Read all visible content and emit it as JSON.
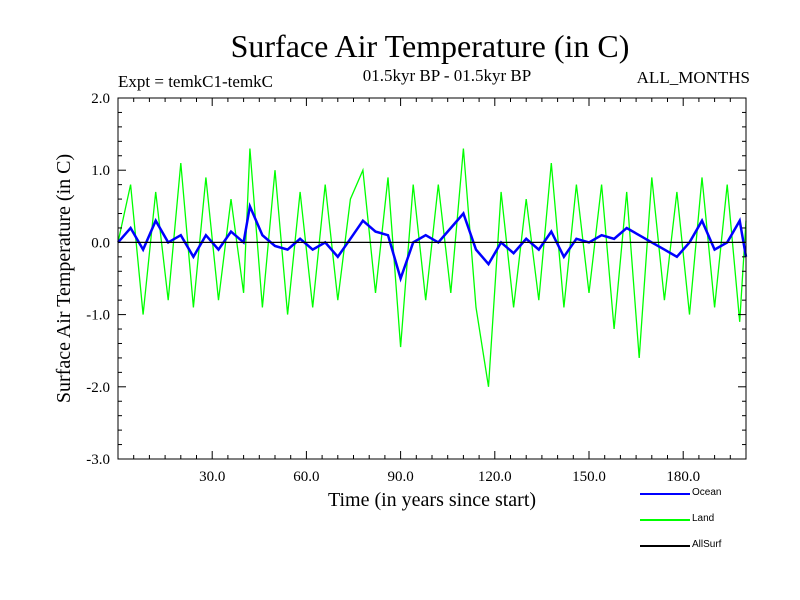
{
  "chart_data": {
    "type": "line",
    "title": "Surface Air Temperature (in C)",
    "experiment_label": "Expt = temkC1-temkC",
    "period_label": "01.5kyr BP - 01.5kyr BP",
    "months_label": "ALL_MONTHS",
    "xlabel": "Time (in years since start)",
    "ylabel": "Surface Air Temperature (in C)",
    "xlim": [
      0,
      200
    ],
    "ylim": [
      -3.0,
      2.0
    ],
    "x_ticks": [
      30,
      60,
      90,
      120,
      150,
      180
    ],
    "x_tick_labels": [
      "30.0",
      "60.0",
      "90.0",
      "120.0",
      "150.0",
      "180.0"
    ],
    "y_ticks": [
      2.0,
      1.0,
      0.0,
      -1.0,
      -2.0,
      -3.0
    ],
    "y_tick_labels": [
      "2.0",
      "1.0",
      "0.0",
      "-1.0",
      "-2.0",
      "-3.0"
    ],
    "series": [
      {
        "name": "Land",
        "color": "#00ff00",
        "x": [
          0,
          4,
          8,
          12,
          16,
          20,
          24,
          28,
          32,
          36,
          40,
          42,
          46,
          50,
          54,
          58,
          62,
          66,
          70,
          74,
          78,
          82,
          86,
          90,
          94,
          98,
          102,
          106,
          110,
          114,
          118,
          122,
          126,
          130,
          134,
          138,
          142,
          146,
          150,
          154,
          158,
          162,
          166,
          170,
          174,
          178,
          182,
          186,
          190,
          194,
          198,
          200
        ],
        "values": [
          0.0,
          0.8,
          -1.0,
          0.7,
          -0.8,
          1.1,
          -0.9,
          0.9,
          -0.8,
          0.6,
          -0.7,
          1.3,
          -0.9,
          1.0,
          -1.0,
          0.7,
          -0.9,
          0.8,
          -0.8,
          0.6,
          1.0,
          -0.7,
          0.9,
          -1.45,
          0.8,
          -0.8,
          0.8,
          -0.7,
          1.3,
          -0.9,
          -2.0,
          0.7,
          -0.9,
          0.6,
          -0.8,
          1.1,
          -0.9,
          0.8,
          -0.7,
          0.8,
          -1.2,
          0.7,
          -1.6,
          0.9,
          -0.8,
          0.7,
          -1.0,
          0.9,
          -0.9,
          0.8,
          -1.1,
          0.3
        ]
      },
      {
        "name": "Ocean",
        "color": "#0000ff",
        "x": [
          0,
          4,
          8,
          12,
          16,
          20,
          24,
          28,
          32,
          36,
          40,
          42,
          46,
          50,
          54,
          58,
          62,
          66,
          70,
          74,
          78,
          82,
          86,
          90,
          94,
          98,
          102,
          106,
          110,
          114,
          118,
          122,
          126,
          130,
          134,
          138,
          142,
          146,
          150,
          154,
          158,
          162,
          166,
          170,
          174,
          178,
          182,
          186,
          190,
          194,
          198,
          200
        ],
        "values": [
          0.0,
          0.2,
          -0.1,
          0.3,
          0.0,
          0.1,
          -0.2,
          0.1,
          -0.1,
          0.15,
          0.0,
          0.5,
          0.1,
          -0.05,
          -0.1,
          0.05,
          -0.1,
          0.0,
          -0.2,
          0.05,
          0.3,
          0.15,
          0.1,
          -0.5,
          0.0,
          0.1,
          0.0,
          0.2,
          0.4,
          -0.1,
          -0.3,
          0.0,
          -0.15,
          0.05,
          -0.1,
          0.15,
          -0.2,
          0.05,
          0.0,
          0.1,
          0.05,
          0.2,
          0.1,
          0.0,
          -0.1,
          -0.2,
          0.0,
          0.3,
          -0.1,
          0.0,
          0.3,
          -0.2
        ]
      },
      {
        "name": "AllSurf",
        "color": "#000000",
        "x": [
          0,
          200
        ],
        "values": [
          0.0,
          0.0
        ]
      }
    ],
    "legend": [
      "Ocean",
      "Land",
      "AllSurf"
    ],
    "legend_position": "bottom-right",
    "grid": false
  }
}
